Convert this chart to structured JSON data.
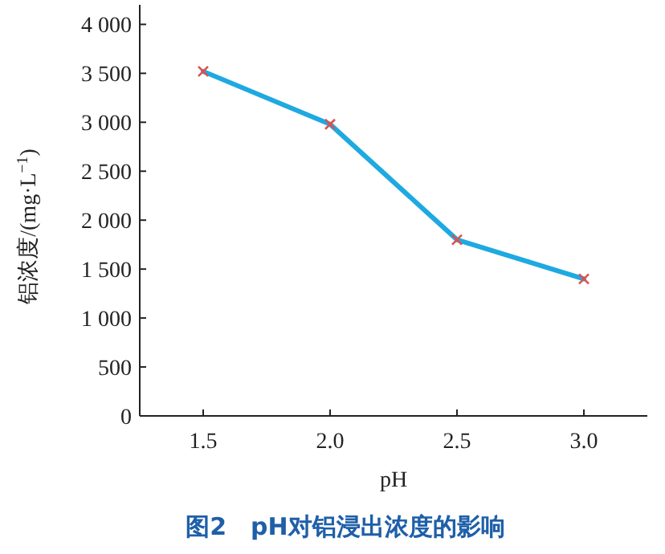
{
  "chart_data": {
    "type": "line",
    "title": "图2　pH对铝浸出浓度的影响",
    "xlabel": "pH",
    "ylabel": "铝浓度/(mg·L$^{−1}$)",
    "x": [
      1.5,
      2.0,
      2.5,
      3.0
    ],
    "series": [
      {
        "color": "#1ea9e1",
        "values": [
          3520,
          2980,
          1800,
          1400
        ]
      }
    ],
    "xlim": [
      1.25,
      3.25
    ],
    "xticks": [
      {
        "value": 1.5,
        "label": "1.5"
      },
      {
        "value": 2.0,
        "label": "2.0"
      },
      {
        "value": 2.5,
        "label": "2.5"
      },
      {
        "value": 3.0,
        "label": "3.0"
      }
    ],
    "ylim": [
      0,
      4200
    ],
    "yticks": [
      {
        "value": 0,
        "label": "0"
      },
      {
        "value": 500,
        "label": "500"
      },
      {
        "value": 1000,
        "label": "1 000"
      },
      {
        "value": 1500,
        "label": "1 500"
      },
      {
        "value": 2000,
        "label": "2 000"
      },
      {
        "value": 2500,
        "label": "2 500"
      },
      {
        "value": 3000,
        "label": "3 000"
      },
      {
        "value": 3500,
        "label": "3 500"
      },
      {
        "value": 4000,
        "label": "4 000"
      }
    ],
    "marker": "cross",
    "grid": false
  }
}
